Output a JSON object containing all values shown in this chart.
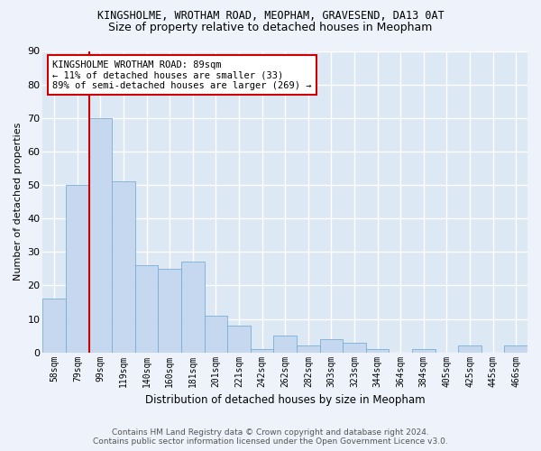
{
  "title1": "KINGSHOLME, WROTHAM ROAD, MEOPHAM, GRAVESEND, DA13 0AT",
  "title2": "Size of property relative to detached houses in Meopham",
  "xlabel": "Distribution of detached houses by size in Meopham",
  "ylabel": "Number of detached properties",
  "categories": [
    "58sqm",
    "79sqm",
    "99sqm",
    "119sqm",
    "140sqm",
    "160sqm",
    "181sqm",
    "201sqm",
    "221sqm",
    "242sqm",
    "262sqm",
    "282sqm",
    "303sqm",
    "323sqm",
    "344sqm",
    "364sqm",
    "384sqm",
    "405sqm",
    "425sqm",
    "445sqm",
    "466sqm"
  ],
  "values": [
    16,
    50,
    70,
    51,
    26,
    25,
    27,
    11,
    8,
    1,
    5,
    2,
    4,
    3,
    1,
    0,
    1,
    0,
    2,
    0,
    2
  ],
  "bar_color": "#c5d8f0",
  "bar_edge_color": "#7aafd4",
  "marker_label_line1": "KINGSHOLME WROTHAM ROAD: 89sqm",
  "marker_label_line2": "← 11% of detached houses are smaller (33)",
  "marker_label_line3": "89% of semi-detached houses are larger (269) →",
  "marker_color": "#cc0000",
  "annotation_box_color": "#cc0000",
  "ylim": [
    0,
    90
  ],
  "yticks": [
    0,
    10,
    20,
    30,
    40,
    50,
    60,
    70,
    80,
    90
  ],
  "footer1": "Contains HM Land Registry data © Crown copyright and database right 2024.",
  "footer2": "Contains public sector information licensed under the Open Government Licence v3.0.",
  "bg_color": "#eef2fb",
  "plot_bg_color": "#dde8f5",
  "grid_color": "#ffffff"
}
